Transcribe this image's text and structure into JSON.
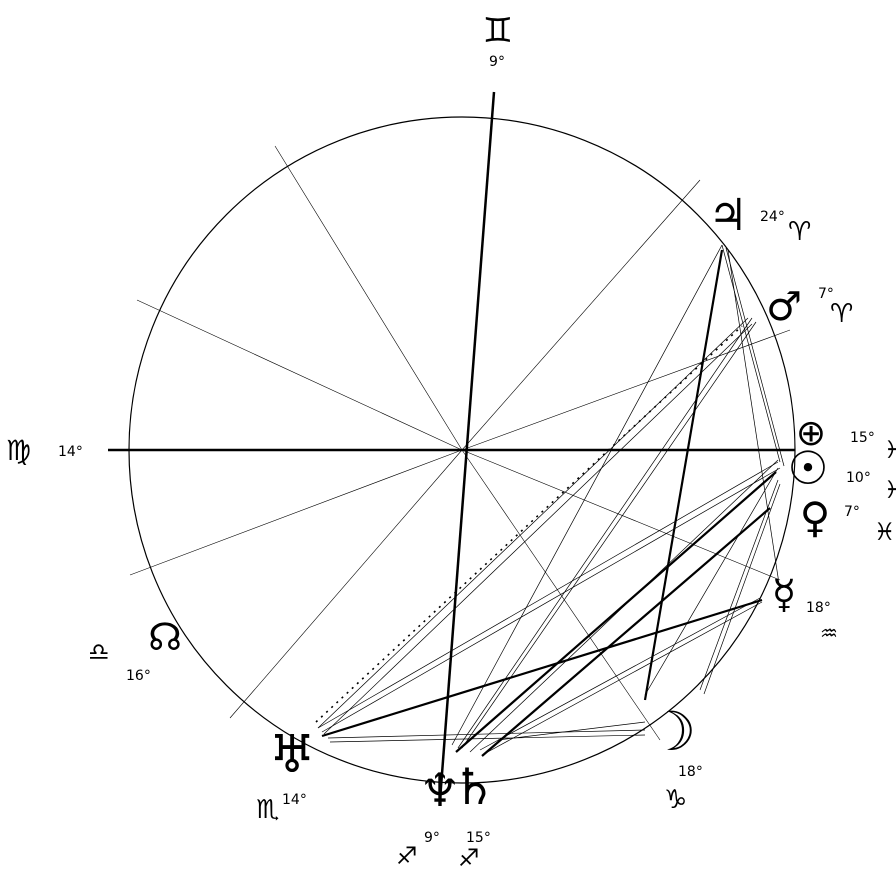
{
  "chart": {
    "angles": {
      "mc": {
        "symbol": "♊",
        "degree": "9°"
      },
      "asc": {
        "symbol": "♍",
        "degree": "14°"
      }
    },
    "planets": [
      {
        "id": "jupiter",
        "symbol": "♃",
        "degree": "24°",
        "sign": "♈"
      },
      {
        "id": "mars",
        "symbol": "♂",
        "degree": "7°",
        "sign": "♈"
      },
      {
        "id": "earth",
        "symbol": "⊕",
        "degree": "15°",
        "sign": "♓"
      },
      {
        "id": "sun",
        "symbol": "☉",
        "degree": "10°",
        "sign": "♓"
      },
      {
        "id": "venus",
        "symbol": "♀",
        "degree": "7°",
        "sign": "♓"
      },
      {
        "id": "mercury",
        "symbol": "☿",
        "degree": "18°",
        "sign": "♒"
      },
      {
        "id": "moon",
        "symbol": "☽",
        "degree": "18°",
        "sign": "♑"
      },
      {
        "id": "saturn",
        "symbol": "♄",
        "degree": "15°",
        "sign": "♐"
      },
      {
        "id": "neptune",
        "symbol": "♆",
        "degree": "9°",
        "sign": "♐"
      },
      {
        "id": "uranus",
        "symbol": "♅",
        "degree": "14°",
        "sign": "♏"
      },
      {
        "id": "node",
        "symbol": "☊",
        "degree": "16°",
        "sign": "♎"
      }
    ]
  }
}
